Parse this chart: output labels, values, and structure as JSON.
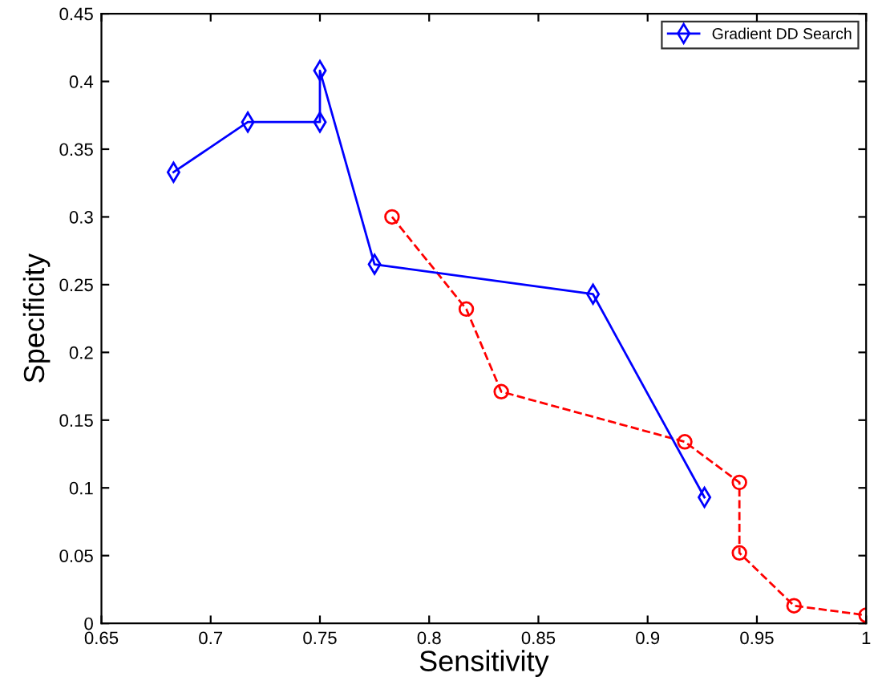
{
  "chart_data": {
    "type": "line",
    "xlabel": "Sensitivity",
    "ylabel": "Specificity",
    "xlim": [
      0.65,
      1
    ],
    "xticks": [
      0.65,
      0.7,
      0.75,
      0.8,
      0.85,
      0.9,
      0.95,
      1
    ],
    "ylim": [
      0,
      0.45
    ],
    "yticks": [
      0,
      0.05,
      0.1,
      0.15,
      0.2,
      0.25,
      0.3,
      0.35,
      0.4,
      0.45
    ],
    "grid": false,
    "legend": "top right",
    "series": [
      {
        "color": "#ff0000",
        "marker": "circle",
        "line_style": "dashed",
        "x": [
          0.783,
          0.817,
          0.833,
          0.917,
          0.942,
          0.942,
          0.967,
          1.0
        ],
        "values": [
          0.3,
          0.232,
          0.171,
          0.134,
          0.104,
          0.052,
          0.013,
          0.006
        ]
      },
      {
        "name": "Gradient DD Search",
        "color": "#0000ff",
        "marker": "diamond",
        "line_style": "solid",
        "x": [
          0.683,
          0.717,
          0.75,
          0.75,
          0.775,
          0.875,
          0.926
        ],
        "values": [
          0.333,
          0.37,
          0.37,
          0.408,
          0.265,
          0.243,
          0.093
        ]
      }
    ]
  }
}
